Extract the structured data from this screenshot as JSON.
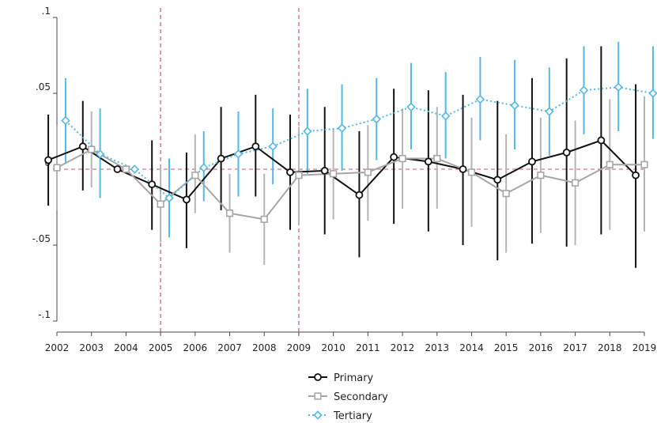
{
  "chart_data": {
    "type": "line",
    "x": [
      2002,
      2003,
      2004,
      2005,
      2006,
      2007,
      2008,
      2009,
      2010,
      2011,
      2012,
      2013,
      2014,
      2015,
      2016,
      2017,
      2018,
      2019
    ],
    "xticks": [
      "2002",
      "2003",
      "2004",
      "2005",
      "2006",
      "2007",
      "2008",
      "2009",
      "2010",
      "2011",
      "2012",
      "2013",
      "2014",
      "2015",
      "2016",
      "2017",
      "2018",
      "2019"
    ],
    "yticks": [
      {
        "value": 0.1,
        "label": ".1"
      },
      {
        "value": 0.05,
        "label": ".05"
      },
      {
        "value": 0,
        "label": "0"
      },
      {
        "value": -0.05,
        "label": "-.05"
      },
      {
        "value": -0.1,
        "label": "-.1"
      }
    ],
    "ylim": [
      -0.1,
      0.1
    ],
    "xlim": [
      2002,
      2019
    ],
    "grid": false,
    "zero_line": {
      "y": 0,
      "color": "#d0768a",
      "style": "dashed"
    },
    "vertical_lines": [
      {
        "x": 2005,
        "color": "#c9566e"
      },
      {
        "x": 2009,
        "color": "#c9566e"
      }
    ],
    "legend_position": "bottom-center",
    "series": [
      {
        "name": "Primary",
        "color": "#111111",
        "ci_color": "#111111",
        "marker": "circle",
        "line_style": "solid",
        "offset": -0.25,
        "values": [
          0.006,
          0.015,
          0.0,
          -0.01,
          -0.02,
          0.007,
          0.015,
          -0.002,
          -0.001,
          -0.017,
          0.008,
          0.005,
          0.0,
          -0.007,
          0.005,
          0.011,
          0.019,
          -0.004
        ],
        "ci_low": [
          -0.024,
          -0.014,
          0.0,
          -0.04,
          -0.052,
          -0.027,
          -0.018,
          -0.04,
          -0.043,
          -0.058,
          -0.036,
          -0.041,
          -0.05,
          -0.06,
          -0.049,
          -0.051,
          -0.043,
          -0.065
        ],
        "ci_high": [
          0.036,
          0.045,
          0.0,
          0.019,
          0.011,
          0.041,
          0.049,
          0.036,
          0.041,
          0.025,
          0.053,
          0.052,
          0.049,
          0.045,
          0.06,
          0.073,
          0.081,
          0.056
        ]
      },
      {
        "name": "Secondary",
        "color": "#a6a6a6",
        "ci_color": "#b5b5b5",
        "marker": "square",
        "line_style": "solid",
        "offset": 0.0,
        "values": [
          0.001,
          0.013,
          0.0,
          -0.023,
          -0.004,
          -0.029,
          -0.033,
          -0.004,
          -0.003,
          -0.002,
          0.007,
          0.007,
          -0.002,
          -0.016,
          -0.004,
          -0.009,
          0.003,
          0.003
        ],
        "ci_low": [
          -0.027,
          -0.012,
          0.0,
          -0.048,
          -0.029,
          -0.055,
          -0.063,
          -0.036,
          -0.033,
          -0.034,
          -0.026,
          -0.026,
          -0.038,
          -0.055,
          -0.042,
          -0.05,
          -0.04,
          -0.041
        ],
        "ci_high": [
          0.029,
          0.038,
          0.0,
          0.002,
          0.023,
          -0.003,
          -0.003,
          0.028,
          0.027,
          0.029,
          0.04,
          0.041,
          0.034,
          0.023,
          0.034,
          0.032,
          0.046,
          0.048
        ]
      },
      {
        "name": "Tertiary",
        "color": "#55b8e2",
        "ci_color": "#55b8e2",
        "marker": "diamond",
        "line_style": "dotted",
        "offset": 0.25,
        "values": [
          0.032,
          0.01,
          0.0,
          -0.019,
          0.001,
          0.01,
          0.015,
          0.025,
          0.027,
          0.033,
          0.041,
          0.035,
          0.046,
          0.042,
          0.038,
          0.052,
          0.054,
          0.05
        ],
        "ci_low": [
          0.004,
          -0.019,
          0.0,
          -0.045,
          -0.021,
          -0.018,
          -0.01,
          -0.003,
          -0.001,
          0.006,
          0.013,
          0.007,
          0.019,
          0.013,
          0.009,
          0.023,
          0.025,
          0.02
        ],
        "ci_high": [
          0.06,
          0.04,
          0.0,
          0.007,
          0.025,
          0.038,
          0.04,
          0.053,
          0.056,
          0.06,
          0.07,
          0.064,
          0.074,
          0.072,
          0.067,
          0.081,
          0.084,
          0.081
        ]
      }
    ]
  }
}
